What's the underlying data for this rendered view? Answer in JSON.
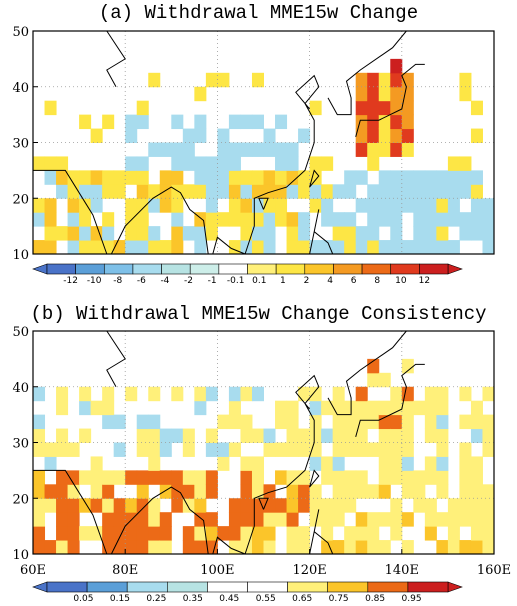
{
  "panels": [
    {
      "title": "(a) Withdrawal MME15w Change",
      "y_ticks": [
        "50",
        "40",
        "30",
        "20",
        "10"
      ],
      "colorbar_labels": [
        "-12",
        "-10",
        "-8",
        "-6",
        "-4",
        "-2",
        "-1",
        "-0.1",
        "0.1",
        "1",
        "2",
        "4",
        "6",
        "8",
        "10",
        "12"
      ]
    },
    {
      "title": "(b) Withdrawal MME15w Change Consistency",
      "y_ticks": [
        "50",
        "40",
        "30",
        "20",
        "10"
      ],
      "x_ticks": [
        "60E",
        "80E",
        "100E",
        "120E",
        "140E",
        "160E"
      ],
      "colorbar_labels": [
        "0.05",
        "0.15",
        "0.25",
        "0.35",
        "0.45",
        "0.55",
        "0.65",
        "0.75",
        "0.85",
        "0.95"
      ]
    }
  ],
  "colors": {
    "change_palette": [
      "#4a73c8",
      "#5b9fd8",
      "#7ec0e8",
      "#a8dcee",
      "#b7e3e3",
      "#cdeee9",
      "#ffffff",
      "#fff07a",
      "#fde645",
      "#fbc52a",
      "#f49a22",
      "#ec6a17",
      "#e03a1e",
      "#cc1f1f"
    ],
    "consistency_palette": [
      "#4a73c8",
      "#5b9fd8",
      "#a8dcee",
      "#b7e3e3",
      "#ffffff",
      "#ffffff",
      "#fff07a",
      "#fbc52a",
      "#ec6a17",
      "#cc1f1f"
    ]
  }
}
